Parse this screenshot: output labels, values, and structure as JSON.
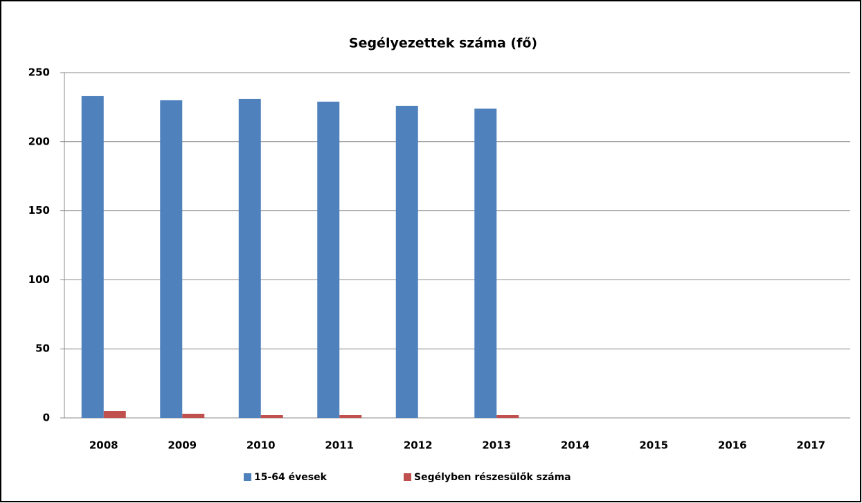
{
  "chart_data": {
    "type": "bar",
    "title": "Segélyezettek száma (fő)",
    "categories": [
      "2008",
      "2009",
      "2010",
      "2011",
      "2012",
      "2013",
      "2014",
      "2015",
      "2016",
      "2017"
    ],
    "series": [
      {
        "name": "15-64 évesek",
        "color": "#4f81bd",
        "values": [
          233,
          230,
          231,
          229,
          226,
          224,
          null,
          null,
          null,
          null
        ]
      },
      {
        "name": "Segélyben részesülők száma",
        "color": "#c0504d",
        "values": [
          5,
          3,
          2,
          2,
          0,
          2,
          null,
          null,
          null,
          null
        ]
      }
    ],
    "ylim": [
      0,
      250
    ],
    "yticks": [
      0,
      50,
      100,
      150,
      200,
      250
    ],
    "grid": true,
    "legend": "bottom"
  }
}
